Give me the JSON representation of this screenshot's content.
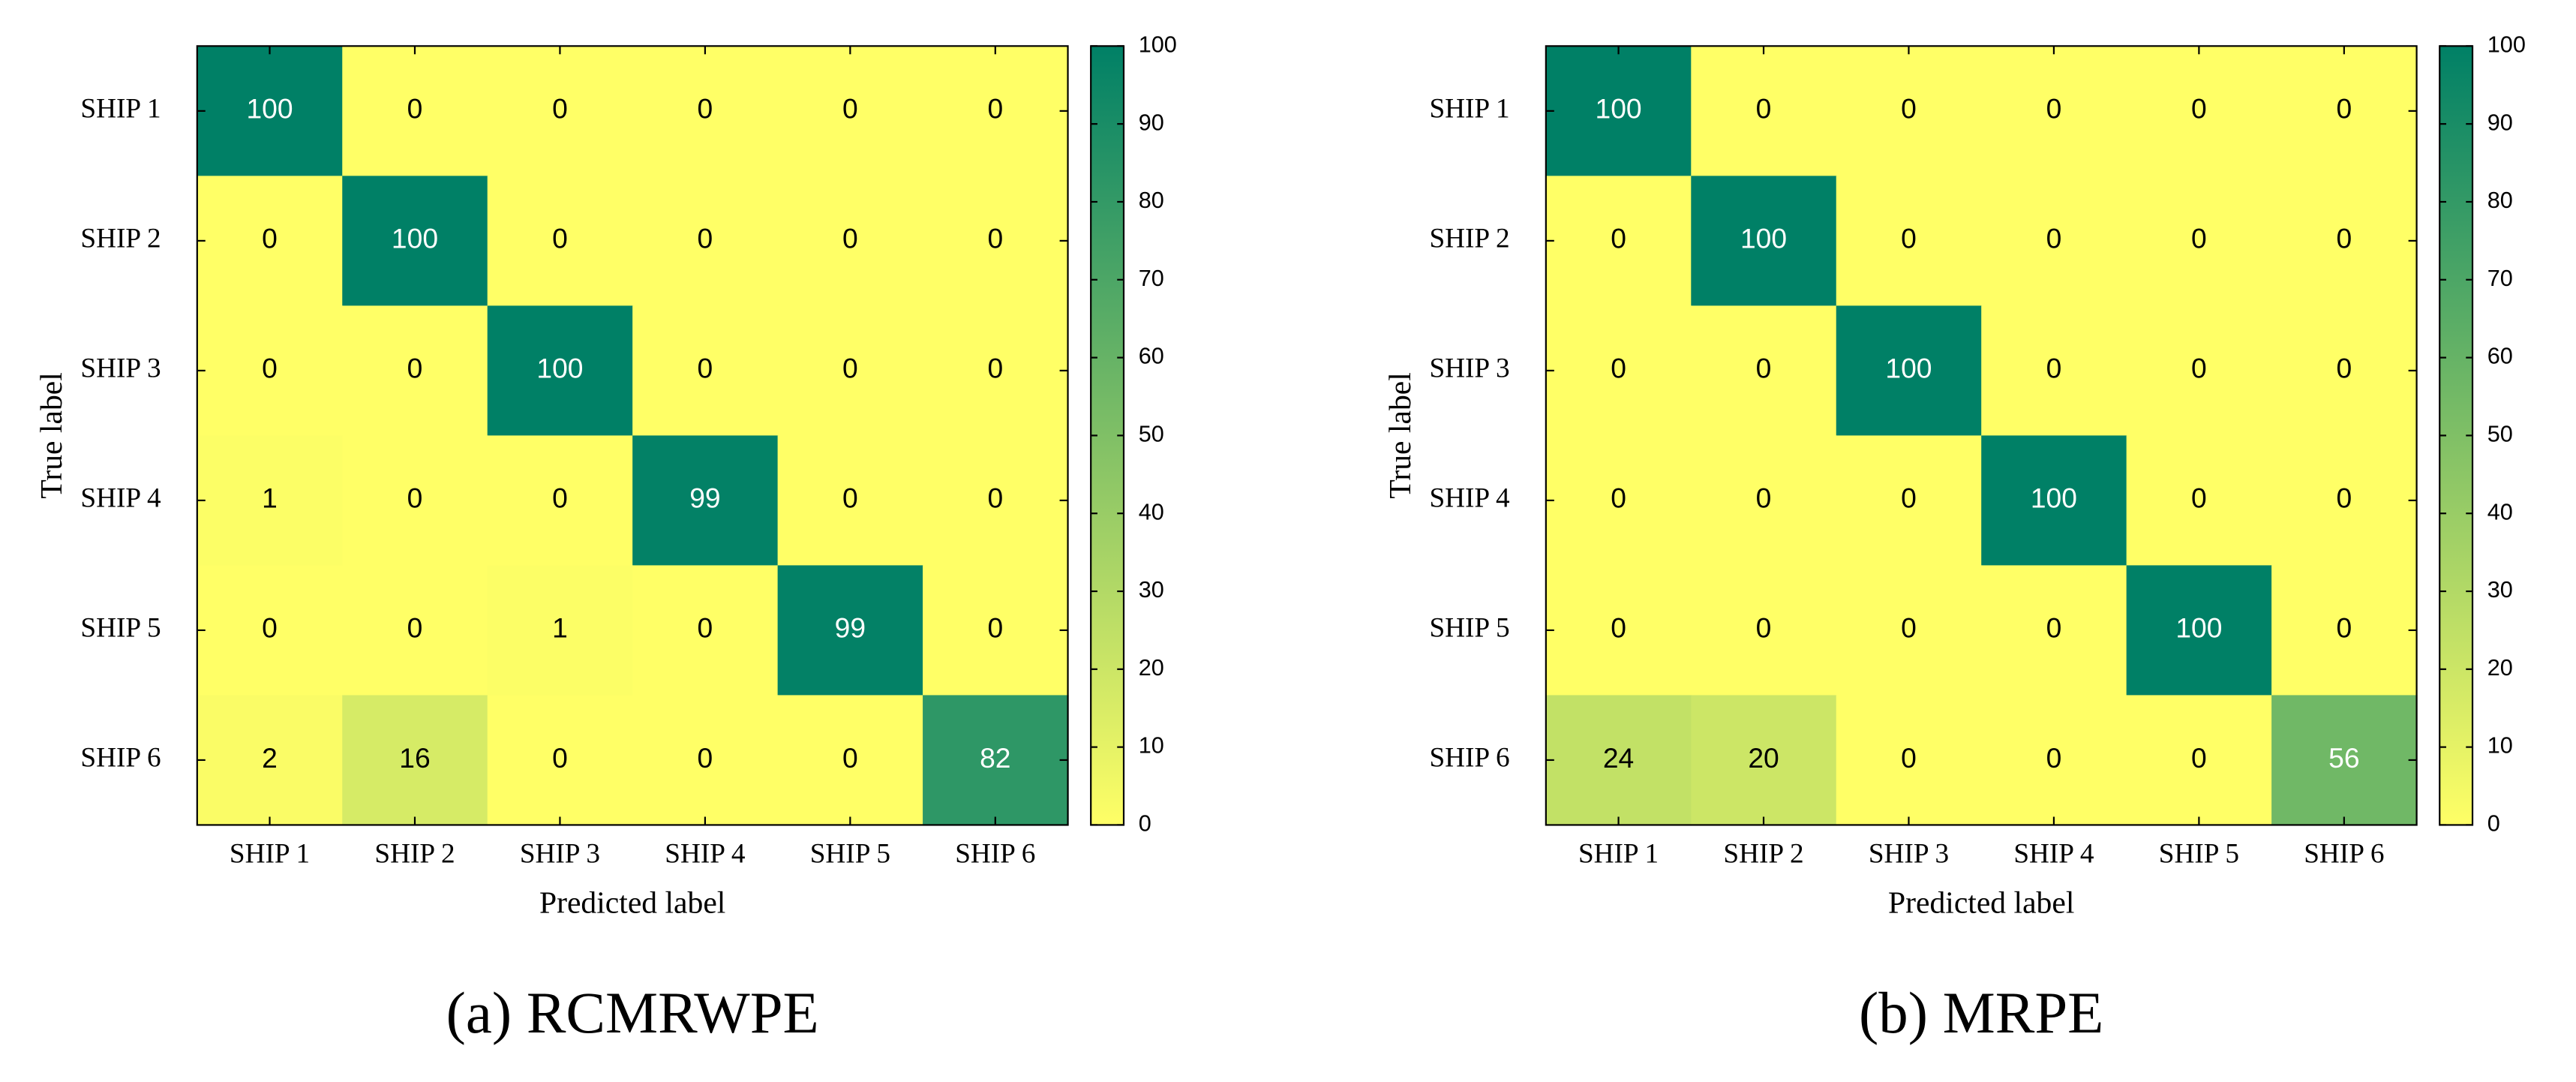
{
  "chart_data": [
    {
      "type": "heatmap",
      "caption": "(a) RCMRWPE",
      "x_categories": [
        "SHIP 1",
        "SHIP 2",
        "SHIP 3",
        "SHIP 4",
        "SHIP 5",
        "SHIP 6"
      ],
      "y_categories": [
        "SHIP 1",
        "SHIP 2",
        "SHIP 3",
        "SHIP 4",
        "SHIP 5",
        "SHIP 6"
      ],
      "xlabel": "Predicted label",
      "ylabel": "True label",
      "values": [
        [
          100,
          0,
          0,
          0,
          0,
          0
        ],
        [
          0,
          100,
          0,
          0,
          0,
          0
        ],
        [
          0,
          0,
          100,
          0,
          0,
          0
        ],
        [
          1,
          0,
          0,
          99,
          0,
          0
        ],
        [
          0,
          0,
          1,
          0,
          99,
          0
        ],
        [
          2,
          16,
          0,
          0,
          0,
          82
        ]
      ],
      "zlim": [
        0,
        100
      ],
      "zticks": [
        0,
        10,
        20,
        30,
        40,
        50,
        60,
        70,
        80,
        90,
        100
      ],
      "colormap": [
        "#ffff66",
        "#008066"
      ]
    },
    {
      "type": "heatmap",
      "caption": "(b) MRPE",
      "x_categories": [
        "SHIP 1",
        "SHIP 2",
        "SHIP 3",
        "SHIP 4",
        "SHIP 5",
        "SHIP 6"
      ],
      "y_categories": [
        "SHIP 1",
        "SHIP 2",
        "SHIP 3",
        "SHIP 4",
        "SHIP 5",
        "SHIP 6"
      ],
      "xlabel": "Predicted label",
      "ylabel": "True label",
      "values": [
        [
          100,
          0,
          0,
          0,
          0,
          0
        ],
        [
          0,
          100,
          0,
          0,
          0,
          0
        ],
        [
          0,
          0,
          100,
          0,
          0,
          0
        ],
        [
          0,
          0,
          0,
          100,
          0,
          0
        ],
        [
          0,
          0,
          0,
          0,
          100,
          0
        ],
        [
          24,
          20,
          0,
          0,
          0,
          56
        ]
      ],
      "zlim": [
        0,
        100
      ],
      "zticks": [
        0,
        10,
        20,
        30,
        40,
        50,
        60,
        70,
        80,
        90,
        100
      ],
      "colormap": [
        "#ffff66",
        "#008066"
      ]
    }
  ]
}
